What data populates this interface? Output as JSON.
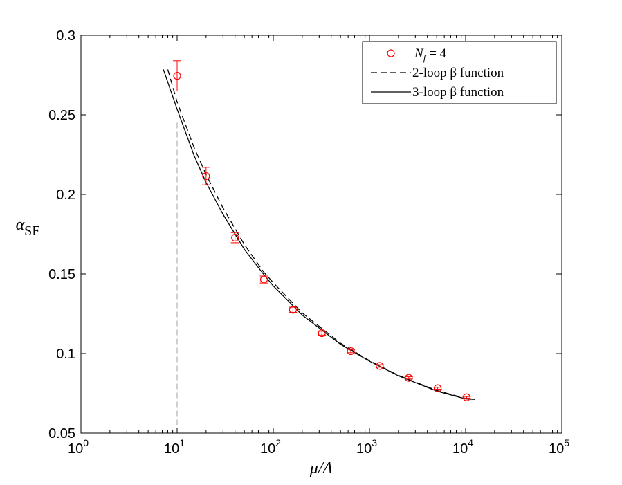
{
  "chart_data": {
    "type": "scatter",
    "x_scale": "log",
    "xlim": [
      1,
      100000
    ],
    "ylim": [
      0.05,
      0.3
    ],
    "xlabel": {
      "main": "μ/Λ"
    },
    "ylabel": {
      "symbol": "α",
      "subscript": "SF"
    },
    "x_ticks": [
      {
        "value": 1,
        "base": "10",
        "exp": "0"
      },
      {
        "value": 10,
        "base": "10",
        "exp": "1"
      },
      {
        "value": 100,
        "base": "10",
        "exp": "2"
      },
      {
        "value": 1000,
        "base": "10",
        "exp": "3"
      },
      {
        "value": 10000,
        "base": "10",
        "exp": "4"
      },
      {
        "value": 100000,
        "base": "10",
        "exp": "5"
      }
    ],
    "y_ticks": [
      {
        "value": 0.05,
        "label": "0.05"
      },
      {
        "value": 0.1,
        "label": "0.1"
      },
      {
        "value": 0.15,
        "label": "0.15"
      },
      {
        "value": 0.2,
        "label": "0.2"
      },
      {
        "value": 0.25,
        "label": "0.25"
      },
      {
        "value": 0.3,
        "label": "0.3"
      }
    ],
    "legend": {
      "position": "top-right",
      "entries": [
        {
          "label": "N_f = 4",
          "label_main": "N",
          "label_sub": "f",
          "label_rest": " = 4",
          "style": "marker"
        },
        {
          "label": "2-loop β function",
          "style": "dashed"
        },
        {
          "label": "3-loop β function",
          "style": "solid"
        }
      ]
    },
    "series": [
      {
        "name": "N_f = 4",
        "kind": "points",
        "color": "#ff0000",
        "x": [
          10,
          20,
          40,
          80,
          160,
          320,
          640,
          1280,
          2560,
          5120,
          10240
        ],
        "y": [
          0.2745,
          0.2115,
          0.1728,
          0.1465,
          0.1275,
          0.1128,
          0.1015,
          0.0922,
          0.0847,
          0.0782,
          0.0725
        ],
        "yerr": [
          0.0095,
          0.0055,
          0.0032,
          0.0022,
          0.0016,
          0.0012,
          0.001,
          0.0008,
          0.0007,
          0.0006,
          0.0005
        ]
      },
      {
        "name": "2-loop β function",
        "kind": "line",
        "dash": "dashed",
        "color": "#000000",
        "x": [
          8.0,
          10,
          15,
          20,
          30,
          50,
          80,
          100,
          200,
          500,
          1000,
          2000,
          5000,
          10000,
          12000
        ],
        "y": [
          0.2785,
          0.258,
          0.2295,
          0.2125,
          0.1915,
          0.1685,
          0.151,
          0.1445,
          0.1255,
          0.1065,
          0.0955,
          0.0863,
          0.0768,
          0.0718,
          0.0712
        ]
      },
      {
        "name": "3-loop β function",
        "kind": "line",
        "dash": "solid",
        "color": "#000000",
        "x": [
          7.2,
          10,
          15,
          20,
          30,
          50,
          80,
          100,
          200,
          500,
          1000,
          2000,
          5000,
          10000,
          12500
        ],
        "y": [
          0.2785,
          0.2535,
          0.2245,
          0.2075,
          0.1875,
          0.1655,
          0.1495,
          0.1425,
          0.1242,
          0.1058,
          0.0952,
          0.086,
          0.0764,
          0.0715,
          0.0712
        ]
      },
      {
        "name": "reference-line",
        "kind": "vline",
        "dash": "dashed",
        "color": "#a0a0a0",
        "x": 10
      }
    ]
  }
}
